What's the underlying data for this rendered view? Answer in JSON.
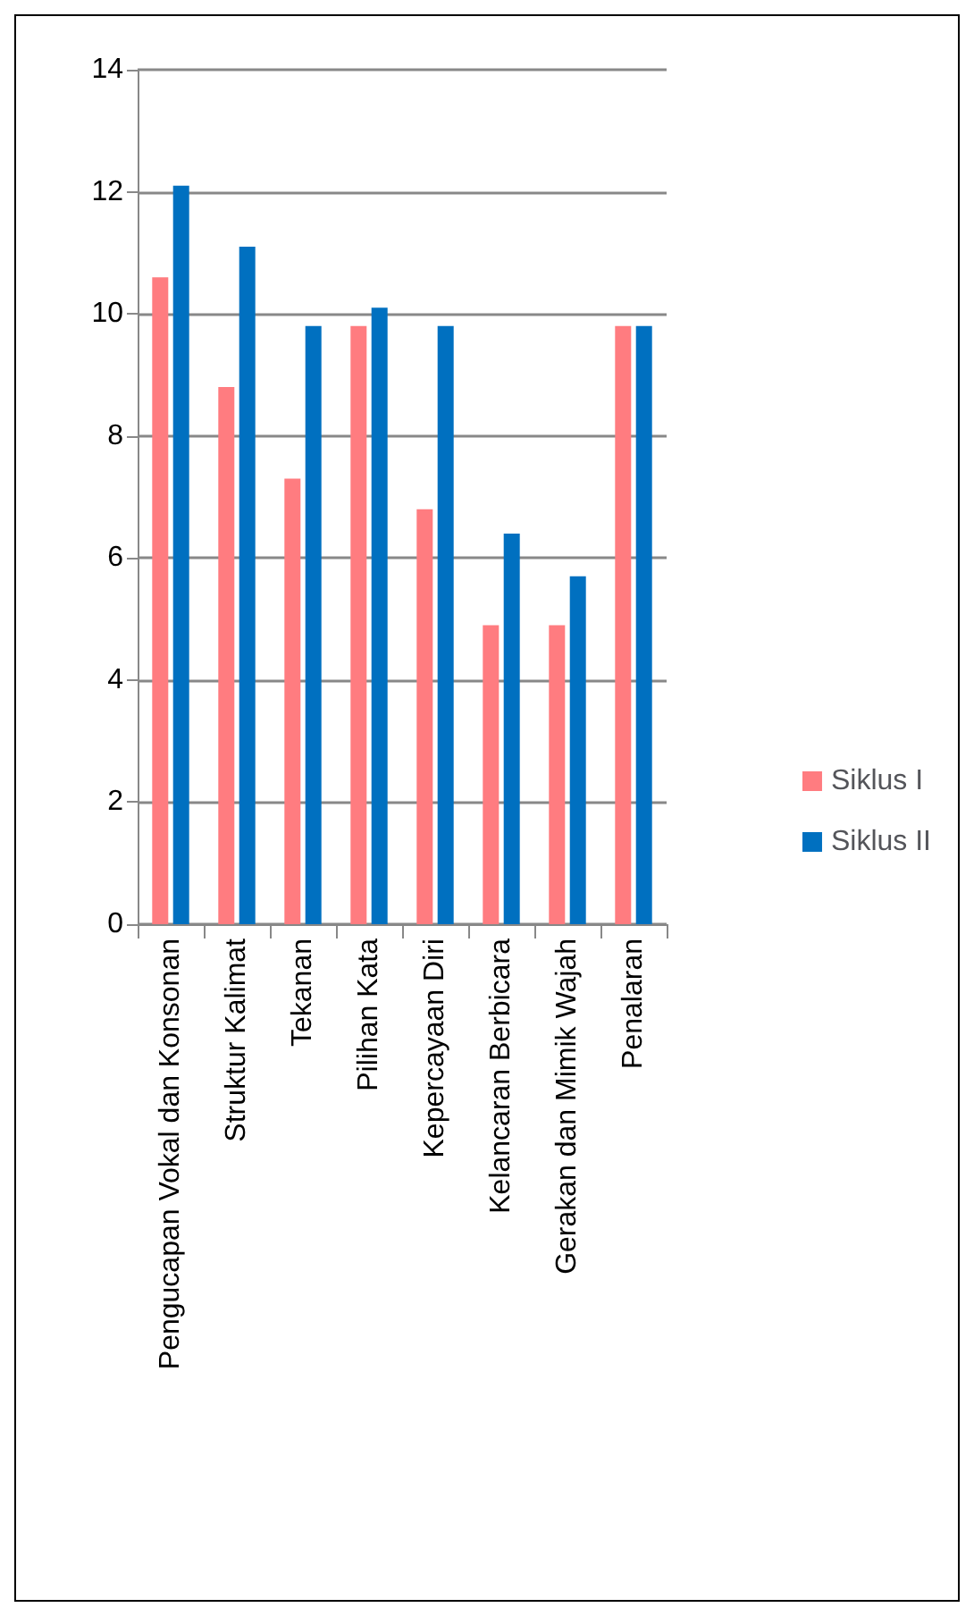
{
  "chart_data": {
    "type": "bar",
    "categories": [
      "Pengucapan Vokal dan Konsonan",
      "Struktur Kalimat",
      "Tekanan",
      "Pilihan Kata",
      "Kepercayaan Diri",
      "Kelancaran Berbicara",
      "Gerakan dan Mimik Wajah",
      "Penalaran"
    ],
    "series": [
      {
        "name": "Siklus I",
        "color": "#ff7c80",
        "values": [
          10.6,
          8.8,
          7.3,
          9.8,
          6.8,
          4.9,
          4.9,
          9.8
        ]
      },
      {
        "name": "Siklus II",
        "color": "#0070c0",
        "values": [
          12.1,
          11.1,
          9.8,
          10.1,
          9.8,
          6.4,
          5.7,
          9.8
        ]
      }
    ],
    "ylim": [
      0,
      14
    ],
    "yticks": [
      0,
      2,
      4,
      6,
      8,
      10,
      12,
      14
    ],
    "grid": "y",
    "legend": "right"
  }
}
